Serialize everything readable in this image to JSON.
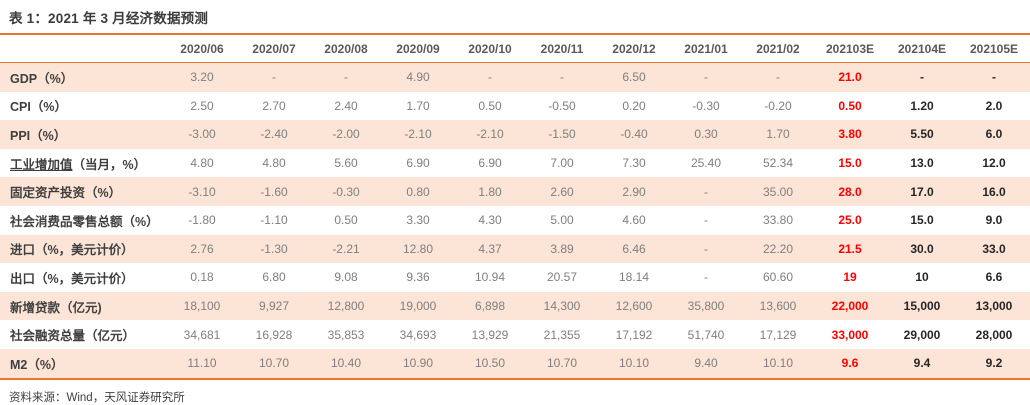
{
  "title": "表 1：2021 年 3 月经济数据预测",
  "source": "资料来源：Wind，天风证券研究所",
  "colors": {
    "accent_orange": "#E8762C",
    "stripe_peach": "#FCE4D6",
    "forecast_red": "#FF0000",
    "forecast_dark": "#262626",
    "value_gray": "#7F7F7F",
    "header_gray": "#595959"
  },
  "table": {
    "columns": [
      "2020/06",
      "2020/07",
      "2020/08",
      "2020/09",
      "2020/10",
      "2020/11",
      "2020/12",
      "2021/01",
      "2021/02",
      "202103E",
      "202104E",
      "202105E"
    ],
    "forecast_red_column": "202103E",
    "forecast_bold_columns": [
      "202104E",
      "202105E"
    ],
    "rows": [
      {
        "label": "GDP（%）",
        "values": [
          "3.20",
          "-",
          "-",
          "4.90",
          "-",
          "-",
          "6.50",
          "-",
          "-",
          "21.0",
          "-",
          "-"
        ]
      },
      {
        "label": "CPI（%）",
        "values": [
          "2.50",
          "2.70",
          "2.40",
          "1.70",
          "0.50",
          "-0.50",
          "0.20",
          "-0.30",
          "-0.20",
          "0.50",
          "1.20",
          "2.0"
        ]
      },
      {
        "label": "PPI（%）",
        "values": [
          "-3.00",
          "-2.40",
          "-2.00",
          "-2.10",
          "-2.10",
          "-1.50",
          "-0.40",
          "0.30",
          "1.70",
          "3.80",
          "5.50",
          "6.0"
        ]
      },
      {
        "label": "工业增加值（当月，%）",
        "underline": "工业增加值",
        "values": [
          "4.80",
          "4.80",
          "5.60",
          "6.90",
          "6.90",
          "7.00",
          "7.30",
          "25.40",
          "52.34",
          "15.0",
          "13.0",
          "12.0"
        ]
      },
      {
        "label": "固定资产投资（%）",
        "values": [
          "-3.10",
          "-1.60",
          "-0.30",
          "0.80",
          "1.80",
          "2.60",
          "2.90",
          "-",
          "35.00",
          "28.0",
          "17.0",
          "16.0"
        ]
      },
      {
        "label": "社会消费品零售总额（%）",
        "values": [
          "-1.80",
          "-1.10",
          "0.50",
          "3.30",
          "4.30",
          "5.00",
          "4.60",
          "-",
          "33.80",
          "25.0",
          "15.0",
          "9.0"
        ]
      },
      {
        "label": "进口（%，美元计价）",
        "values": [
          "2.76",
          "-1.30",
          "-2.21",
          "12.80",
          "4.37",
          "3.89",
          "6.46",
          "-",
          "22.20",
          "21.5",
          "30.0",
          "33.0"
        ]
      },
      {
        "label": "出口（%，美元计价）",
        "values": [
          "0.18",
          "6.80",
          "9.08",
          "9.36",
          "10.94",
          "20.57",
          "18.14",
          "-",
          "60.60",
          "19",
          "10",
          "6.6"
        ]
      },
      {
        "label": "新增贷款（亿元)",
        "values": [
          "18,100",
          "9,927",
          "12,800",
          "19,000",
          "6,898",
          "14,300",
          "12,600",
          "35,800",
          "13,600",
          "22,000",
          "15,000",
          "13,000"
        ]
      },
      {
        "label": "社会融资总量（亿元）",
        "values": [
          "34,681",
          "16,928",
          "35,853",
          "34,693",
          "13,929",
          "21,355",
          "17,192",
          "51,740",
          "17,129",
          "33,000",
          "29,000",
          "28,000"
        ]
      },
      {
        "label": "M2（%）",
        "values": [
          "11.10",
          "10.70",
          "10.40",
          "10.90",
          "10.50",
          "10.70",
          "10.10",
          "9.40",
          "10.10",
          "9.6",
          "9.4",
          "9.2"
        ]
      }
    ]
  }
}
